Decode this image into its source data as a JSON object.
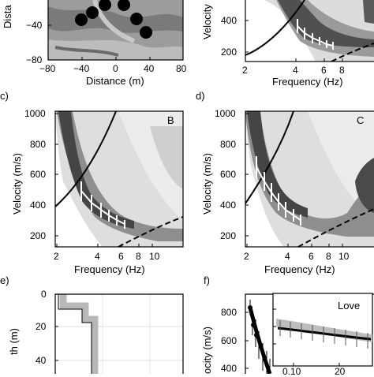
{
  "panel_a": {
    "ylabel": "Dista",
    "yticks": [
      "−40",
      "−80"
    ],
    "xticks": [
      "−80",
      "−40",
      "0",
      "40",
      "80"
    ],
    "xlabel": "Distance (m)"
  },
  "panel_b": {
    "ylabel": "Velocity",
    "yticks": [
      "400",
      "200"
    ],
    "xticks": [
      "2",
      "4",
      "6",
      "8"
    ],
    "xlabel": "Frequency (Hz)"
  },
  "panel_c": {
    "letter": "c)",
    "tag": "B",
    "ylabel": "Velocity (m/s)",
    "yticks": [
      "1000",
      "800",
      "600",
      "400",
      "200"
    ],
    "xticks": [
      "2",
      "4",
      "6",
      "8",
      "10"
    ],
    "xlabel": "Frequency (Hz)"
  },
  "panel_d": {
    "letter": "d)",
    "tag": "C",
    "ylabel": "Velocity (m/s)",
    "yticks": [
      "1000",
      "800",
      "600",
      "400",
      "200"
    ],
    "xticks": [
      "2",
      "4",
      "6",
      "8",
      "10"
    ],
    "xlabel": "Frequency (Hz)"
  },
  "panel_e": {
    "letter": "e)",
    "ylabel": "th (m)",
    "yticks": [
      "0",
      "20",
      "40"
    ]
  },
  "panel_f": {
    "letter": "f)",
    "ylabel": "ocity (m/s)",
    "yticks": [
      "800",
      "600",
      "400"
    ],
    "inset_title": "Love",
    "inset_xticks": [
      "0.10",
      "20"
    ]
  },
  "colors": {
    "spectrum_dark": "#404040",
    "spectrum_mid": "#8a8a8a",
    "spectrum_light": "#cfcfcf",
    "picks": "#ffffff",
    "profile": "#b5b5b5"
  }
}
